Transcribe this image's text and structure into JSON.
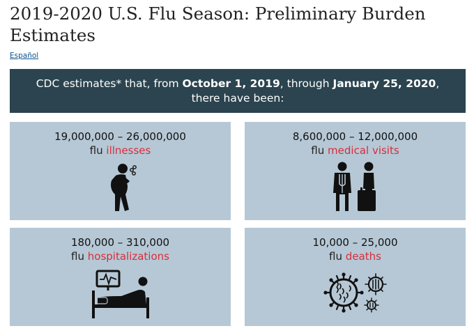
{
  "page": {
    "title": "2019-2020 U.S. Flu Season: Preliminary Burden Estimates",
    "language_link": "Español"
  },
  "banner": {
    "prefix": "CDC estimates* that, from ",
    "start_date": "October 1, 2019",
    "middle": ", through ",
    "end_date": "January 25, 2020",
    "suffix": ", there have been:"
  },
  "cards": [
    {
      "range": "19,000,000 – 26,000,000",
      "prefix": "flu",
      "metric": "illnesses",
      "icon": "sick-person-icon"
    },
    {
      "range": "8,600,000 – 12,000,000",
      "prefix": "flu",
      "metric": "medical visits",
      "icon": "doctor-patient-icon"
    },
    {
      "range": "180,000 – 310,000",
      "prefix": "flu",
      "metric": "hospitalizations",
      "icon": "hospital-bed-icon"
    },
    {
      "range": "10,000 – 25,000",
      "prefix": "flu",
      "metric": "deaths",
      "icon": "virus-icon"
    }
  ],
  "colors": {
    "banner_bg": "#2b444f",
    "card_bg": "#b6c8d5",
    "highlight": "#d72d3c",
    "link": "#075290"
  }
}
